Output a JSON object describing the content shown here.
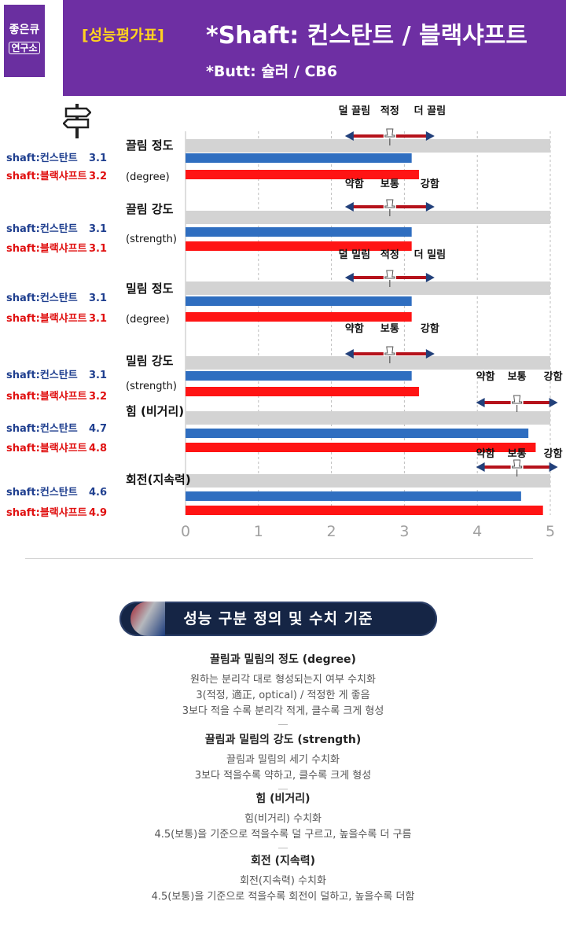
{
  "header": {
    "logo_line1": "좋은큐",
    "logo_line2": "연구소",
    "badge": "[성능평가표]",
    "shaft": "*Shaft: 컨스탄트 / 블랙샤프트",
    "butt": "*Butt: 슐러 / CB6"
  },
  "colors": {
    "constant": "#2f6ec0",
    "black": "#ff1414",
    "track": "#d3d3d3",
    "banner": "#6e2fa3"
  },
  "chart_data": {
    "type": "bar",
    "orientation": "horizontal",
    "xlim": [
      0,
      5
    ],
    "xticks": [
      "0",
      "1",
      "2",
      "3",
      "4",
      "5"
    ],
    "grid": true,
    "series": [
      {
        "name": "shaft:컨스탄트",
        "values": [
          3.1,
          3.1,
          3.1,
          3.1,
          4.7,
          4.6
        ]
      },
      {
        "name": "shaft:블랙샤프트",
        "values": [
          3.2,
          3.1,
          3.1,
          3.2,
          4.8,
          4.9
        ]
      }
    ],
    "categories": [
      {
        "label": "끌림 정도",
        "sub": "(degree)",
        "marker_value": 3,
        "scale": [
          "덜 끌림",
          "적정",
          "더 끌림"
        ]
      },
      {
        "label": "끌림 강도",
        "sub": "(strength)",
        "marker_value": 3,
        "scale": [
          "약함",
          "보통",
          "강함"
        ]
      },
      {
        "label": "밀림 정도",
        "sub": "(degree)",
        "marker_value": 3,
        "scale": [
          "덜 밀림",
          "적정",
          "더 밀림"
        ]
      },
      {
        "label": "밀림 강도",
        "sub": "(strength)",
        "marker_value": 3,
        "scale": [
          "약함",
          "보통",
          "강함"
        ]
      },
      {
        "label": "힘 (비거리)",
        "sub": "",
        "marker_value": 4.5,
        "scale": [
          "약함",
          "보통",
          "강함"
        ]
      },
      {
        "label": "회전(지속력)",
        "sub": "",
        "marker_value": 4.5,
        "scale": [
          "약함",
          "보통",
          "강함"
        ]
      }
    ]
  },
  "definitions": {
    "title": "성능 구분 정의 및 수치 기준",
    "items": [
      {
        "heading": "끌림과 밀림의 정도 (degree)",
        "lines": [
          "원하는 분리각 대로 형성되는지 여부 수치화",
          "3(적정, 適正, optical) / 적정한 게 좋음",
          "3보다 적을 수록 분리각 적게, 클수록 크게 형성"
        ]
      },
      {
        "heading": "끌림과 밀림의 강도 (strength)",
        "lines": [
          "끌림과 밀림의 세기 수치화",
          "3보다 적을수록 약하고, 클수록 크게 형성"
        ]
      },
      {
        "heading": "힘 (비거리)",
        "lines": [
          "힘(비거리) 수치화",
          "4.5(보통)을 기준으로 적을수록 덜 구르고, 높을수록 더 구름"
        ]
      },
      {
        "heading": "회전 (지속력)",
        "lines": [
          "회전(지속력) 수치화",
          "4.5(보통)을 기준으로 적을수록 회전이 덜하고, 높을수록 더함"
        ]
      }
    ]
  }
}
